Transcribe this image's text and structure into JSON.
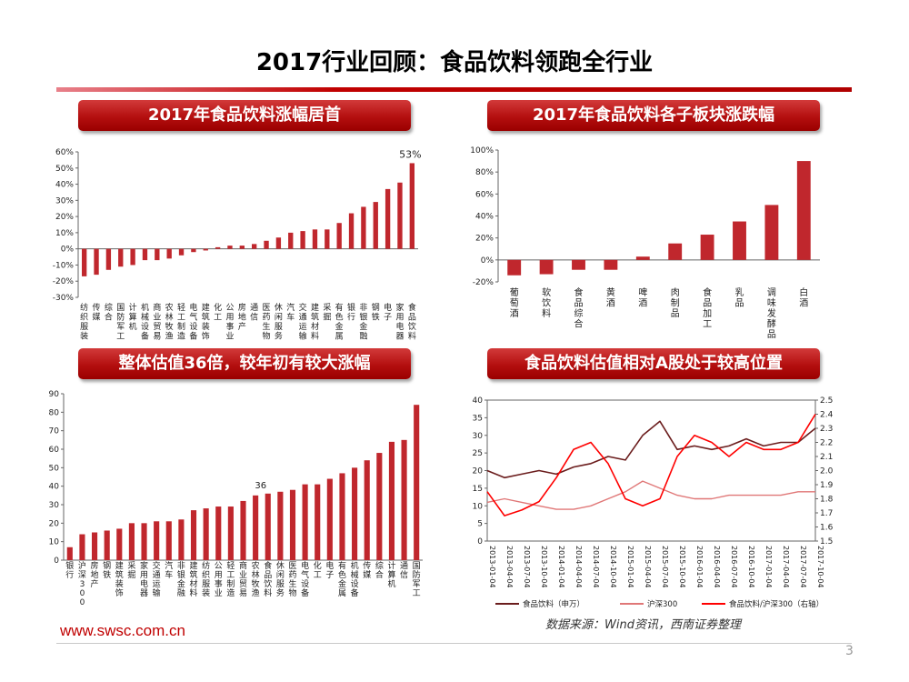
{
  "slide": {
    "title": "2017行业回顾：食品饮料领跑全行业",
    "badges": [
      "2017年食品饮料涨幅居首",
      "2017年食品饮料各子板块涨跌幅",
      "整体估值36倍，较年初有较大涨幅",
      "食品饮料估值相对A股处于较高位置"
    ],
    "footer_url": "www.swsc.com.cn",
    "source": "数据来源：Wind资讯，西南证券整理",
    "page": "3"
  },
  "colors": {
    "bar": "#c0272d",
    "series_food": "#6b1d1d",
    "series_hs300": "#e07777",
    "series_ratio": "#ff0000",
    "accent": "#c00000"
  },
  "chart_data": [
    {
      "type": "bar",
      "categories": [
        "纺织服装",
        "传媒",
        "综合",
        "国防军工",
        "计算机",
        "机械设备",
        "商业贸易",
        "农林牧渔",
        "轻工制造",
        "电气设备",
        "建筑装饰",
        "化工",
        "公用事业",
        "房地产",
        "通信",
        "医药生物",
        "休闲服务",
        "汽车",
        "交通运输",
        "建筑材料",
        "采掘",
        "有色金属",
        "银行",
        "非银金融",
        "钢铁",
        "电子",
        "家用电器",
        "食品饮料"
      ],
      "values": [
        -17,
        -16,
        -13,
        -11,
        -10,
        -7,
        -7,
        -6,
        -4,
        -2,
        -1,
        1,
        2,
        2,
        3,
        5,
        7,
        10,
        11,
        12,
        12,
        16,
        22,
        26,
        29,
        37,
        41,
        53
      ],
      "ylim": [
        -30,
        60
      ],
      "yticks": [
        -30,
        -20,
        -10,
        0,
        10,
        20,
        30,
        40,
        50,
        60
      ],
      "annotation": "53%"
    },
    {
      "type": "bar",
      "categories": [
        "葡萄酒",
        "软饮料",
        "食品综合",
        "黄酒",
        "啤酒",
        "肉制品",
        "食品加工",
        "乳品",
        "调味发酵品",
        "白酒"
      ],
      "values": [
        -14,
        -13,
        -9,
        -9,
        3,
        15,
        23,
        35,
        50,
        90
      ],
      "ylim": [
        -20,
        100
      ],
      "yticks": [
        -20,
        0,
        20,
        40,
        60,
        80,
        100
      ]
    },
    {
      "type": "bar",
      "categories": [
        "银行",
        "沪深300",
        "房地产",
        "钢铁",
        "建筑装饰",
        "采掘",
        "家用电器",
        "交通运输",
        "汽车",
        "非银金融",
        "建筑材料",
        "纺织服装",
        "公用事业",
        "轻工制造",
        "商业贸易",
        "农林牧渔",
        "食品饮料",
        "休闲服务",
        "医药生物",
        "电气设备",
        "化工",
        "电子",
        "有色金属",
        "机械设备",
        "传媒",
        "综合",
        "计算机",
        "通信",
        "国防军工"
      ],
      "values": [
        7,
        14,
        15,
        16,
        17,
        20,
        20,
        21,
        21,
        22,
        27,
        28,
        29,
        29,
        32,
        35,
        36,
        37,
        38,
        41,
        41,
        44,
        47,
        50,
        54,
        58,
        64,
        65,
        84
      ],
      "ylim": [
        0,
        90
      ],
      "yticks": [
        0,
        10,
        20,
        30,
        40,
        50,
        60,
        70,
        80,
        90
      ],
      "annotation": "36"
    },
    {
      "type": "line",
      "x": [
        "2013-01-04",
        "2013-04-04",
        "2013-07-04",
        "2013-10-04",
        "2014-01-04",
        "2014-04-04",
        "2014-07-04",
        "2014-10-04",
        "2015-01-04",
        "2015-04-04",
        "2015-07-04",
        "2015-10-04",
        "2016-01-04",
        "2016-04-04",
        "2016-07-04",
        "2016-10-04",
        "2017-01-04",
        "2017-04-04",
        "2017-07-04",
        "2017-10-04"
      ],
      "series": [
        {
          "name": "食品饮料（申万）",
          "axis": "left",
          "values": [
            20,
            18,
            19,
            20,
            19,
            21,
            22,
            24,
            23,
            30,
            34,
            26,
            27,
            26,
            27,
            29,
            27,
            28,
            28,
            32
          ]
        },
        {
          "name": "沪深300",
          "axis": "left",
          "values": [
            11,
            12,
            11,
            10,
            9,
            9,
            10,
            12,
            14,
            17,
            15,
            13,
            12,
            12,
            13,
            13,
            13,
            13,
            14,
            14
          ]
        },
        {
          "name": "食品饮料/沪深300（右轴）",
          "axis": "right",
          "values": [
            1.85,
            1.68,
            1.72,
            1.78,
            1.95,
            2.15,
            2.2,
            2.05,
            1.8,
            1.75,
            1.8,
            2.1,
            2.25,
            2.2,
            2.1,
            2.2,
            2.15,
            2.15,
            2.2,
            2.4
          ]
        }
      ],
      "ylim_left": [
        0,
        40
      ],
      "yticks_left": [
        0,
        5,
        10,
        15,
        20,
        25,
        30,
        35,
        40
      ],
      "ylim_right": [
        1.5,
        2.5
      ],
      "yticks_right": [
        "1.5",
        "1.6",
        "1.7",
        "1.8",
        "1.9",
        "2.0",
        "2.1",
        "2.2",
        "2.3",
        "2.4",
        "2.5"
      ]
    }
  ]
}
